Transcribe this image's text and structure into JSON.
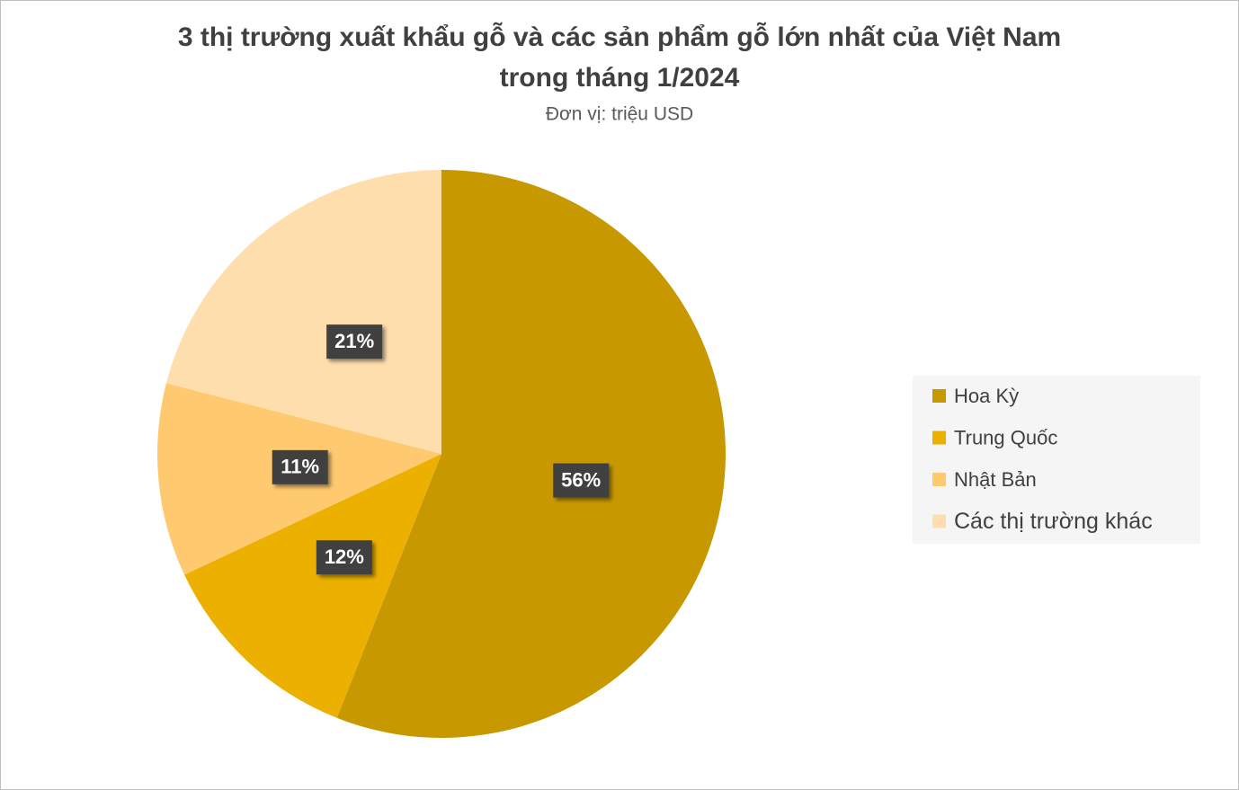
{
  "chart_data": {
    "type": "pie",
    "title": [
      "3 thị trường xuất khẩu gỗ và các sản phẩm gỗ lớn nhất của Việt Nam",
      "trong tháng 1/2024"
    ],
    "subtitle": "Đơn vị: triệu USD",
    "categories": [
      "Hoa Kỳ",
      "Trung Quốc",
      "Nhật Bản",
      "Các thị trường khác"
    ],
    "values": [
      56,
      12,
      11,
      21
    ],
    "value_labels": [
      "56%",
      "12%",
      "11%",
      "21%"
    ],
    "colors": [
      "#c89800",
      "#ebb000",
      "#ffc970",
      "#ffdeae"
    ],
    "legend": "right"
  }
}
